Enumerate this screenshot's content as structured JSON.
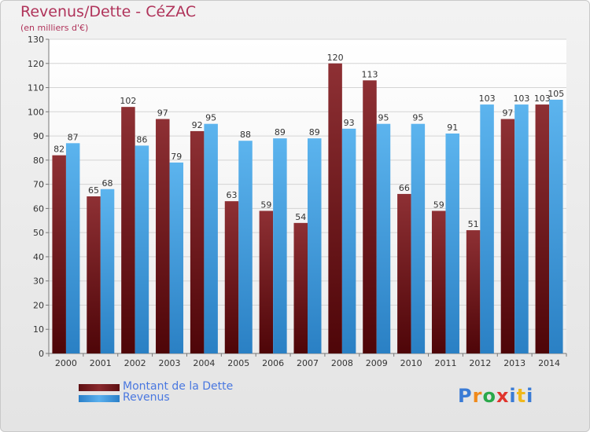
{
  "header": {
    "title": "Revenus/Dette - CéZAC",
    "subtitle": "(en milliers d'€)"
  },
  "chart_data": {
    "type": "bar",
    "title": "Revenus/Dette - CéZAC",
    "subtitle": "(en milliers d'€)",
    "categories": [
      "2000",
      "2001",
      "2002",
      "2003",
      "2004",
      "2005",
      "2006",
      "2007",
      "2008",
      "2009",
      "2010",
      "2011",
      "2012",
      "2013",
      "2014"
    ],
    "series": [
      {
        "name": "Montant de la Dette",
        "color": "#7a1a1f",
        "values": [
          82,
          65,
          102,
          97,
          92,
          63,
          59,
          54,
          120,
          113,
          66,
          59,
          51,
          97,
          103
        ]
      },
      {
        "name": "Revenus",
        "color": "#3a9be0",
        "values": [
          87,
          68,
          86,
          79,
          95,
          88,
          89,
          89,
          93,
          95,
          95,
          91,
          103,
          103,
          105
        ]
      }
    ],
    "ylim": [
      0,
      130
    ],
    "yticks": [
      0,
      10,
      20,
      30,
      40,
      50,
      60,
      70,
      80,
      90,
      100,
      110,
      120,
      130
    ],
    "grid": true,
    "legend": "bottom-left"
  },
  "legend": {
    "items": [
      {
        "label": "Montant de la Dette",
        "color": "#7a1a1f"
      },
      {
        "label": "Revenus",
        "color": "#3a9be0"
      }
    ]
  },
  "logo": {
    "letters": [
      "P",
      "r",
      "o",
      "x",
      "i",
      "t",
      "i"
    ],
    "colors": [
      "#3a7bd5",
      "#f08a1c",
      "#2aa84a",
      "#e0342c",
      "#3a7bd5",
      "#f0b81c",
      "#3a7bd5"
    ]
  }
}
